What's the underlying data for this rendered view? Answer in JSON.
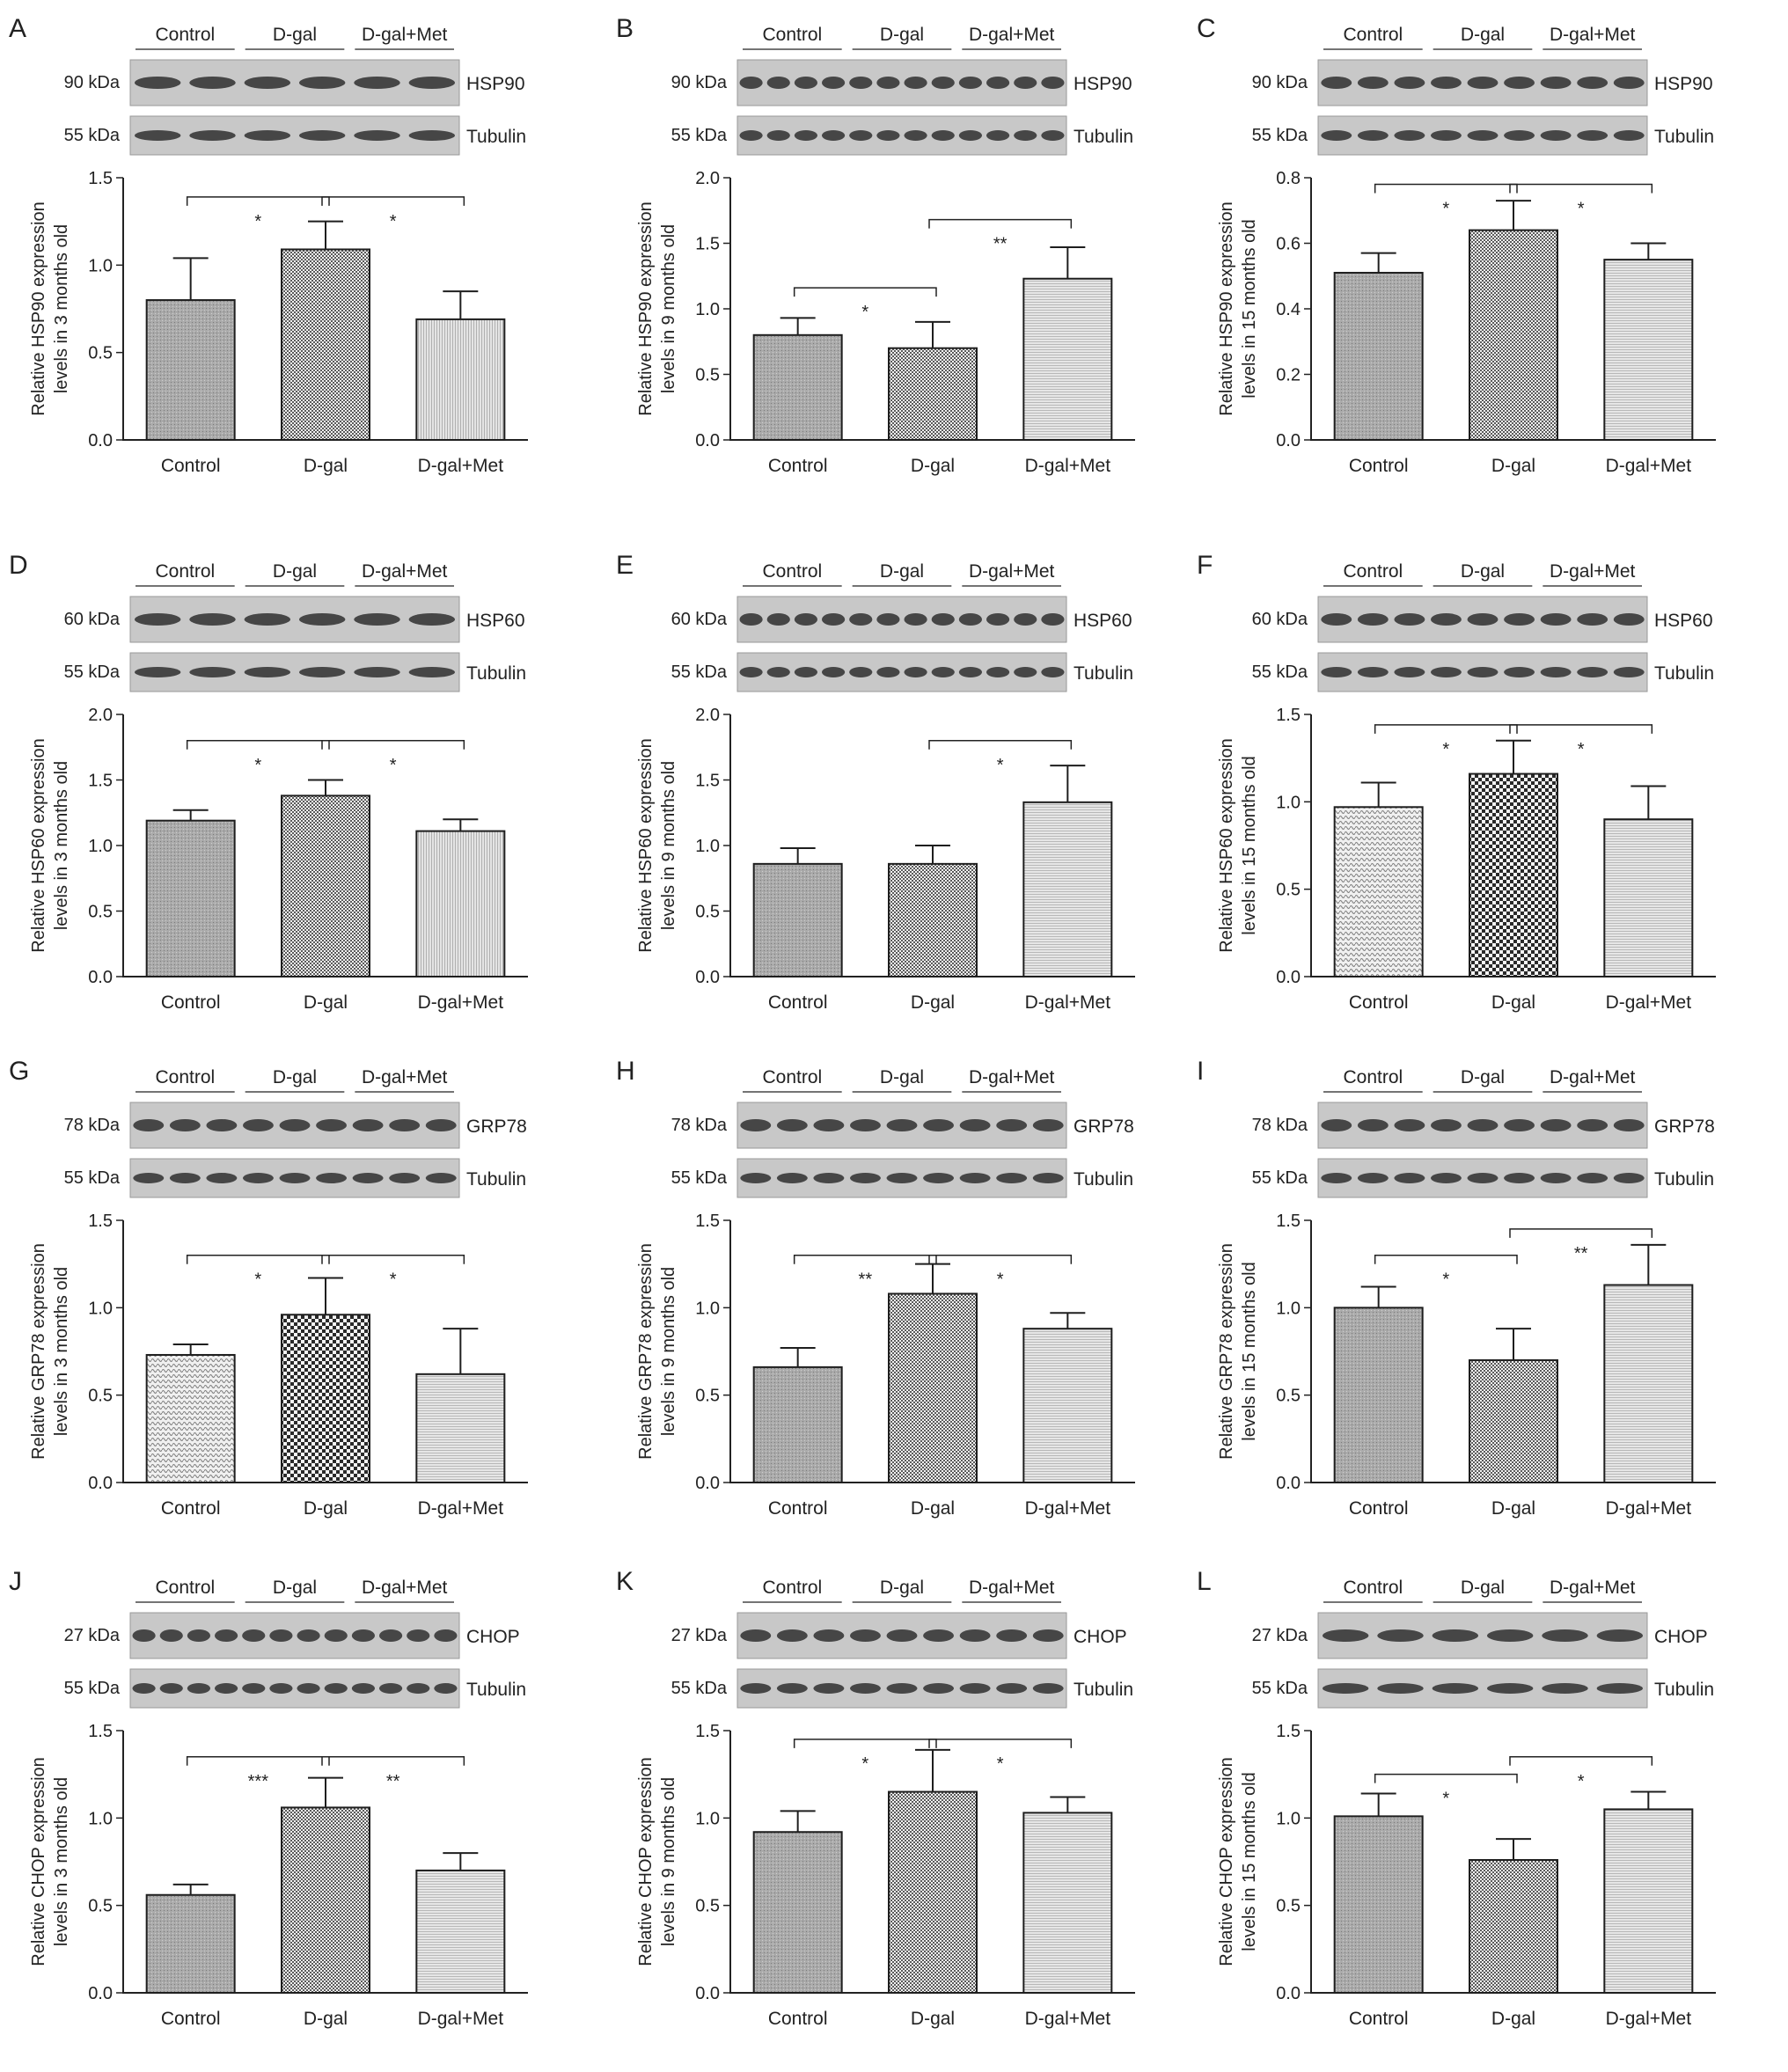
{
  "groups": [
    "Control",
    "D-gal",
    "D-gal+Met"
  ],
  "colors": {
    "axis": "#222222",
    "bar_fill": "#b4b4b4",
    "bar_stroke": "#1e1e1e",
    "blot_bg": "#c8c8c8",
    "band": "#2a2a2a"
  },
  "chart_data": [
    {
      "type": "bar",
      "panel": "A",
      "protein": "HSP90",
      "protein_kda": "90 kDa",
      "tubulin_label": "Tubulin",
      "tubulin_kda": "55 kDa",
      "ylabel": [
        "Relative HSP90 expression",
        "levels in 3 months old"
      ],
      "categories": [
        "Control",
        "D-gal",
        "D-gal+Met"
      ],
      "values": [
        0.8,
        1.09,
        0.69
      ],
      "errors": [
        0.24,
        0.16,
        0.16
      ],
      "ylim": [
        0,
        1.5
      ],
      "ticks": [
        "0.0",
        "0.5",
        "1.0",
        "1.5"
      ],
      "lanes": 6,
      "brackets": [
        {
          "from": 0,
          "to": 1,
          "label": "*",
          "level": 1.39
        },
        {
          "from": 1,
          "to": 2,
          "label": "*",
          "level": 1.39
        }
      ],
      "pattern": [
        "p-dots",
        "p-chk",
        "p-vline"
      ]
    },
    {
      "type": "bar",
      "panel": "B",
      "protein": "HSP90",
      "protein_kda": "90 kDa",
      "tubulin_label": "Tubulin",
      "tubulin_kda": "55 kDa",
      "ylabel": [
        "Relative HSP90 expression",
        "levels in 9 months old"
      ],
      "categories": [
        "Control",
        "D-gal",
        "D-gal+Met"
      ],
      "values": [
        0.8,
        0.7,
        1.23
      ],
      "errors": [
        0.13,
        0.2,
        0.24
      ],
      "ylim": [
        0,
        2.0
      ],
      "ticks": [
        "0.0",
        "0.5",
        "1.0",
        "1.5",
        "2.0"
      ],
      "lanes": 12,
      "brackets": [
        {
          "from": 0,
          "to": 1,
          "label": "*",
          "level": 1.16
        },
        {
          "from": 1,
          "to": 2,
          "label": "**",
          "level": 1.68
        }
      ],
      "pattern": [
        "p-dots",
        "p-chk",
        "p-hline"
      ]
    },
    {
      "type": "bar",
      "panel": "C",
      "protein": "HSP90",
      "protein_kda": "90 kDa",
      "tubulin_label": "Tubulin",
      "tubulin_kda": "55 kDa",
      "ylabel": [
        "Relative HSP90 expression",
        "levels in 15 months old"
      ],
      "categories": [
        "Control",
        "D-gal",
        "D-gal+Met"
      ],
      "values": [
        0.51,
        0.64,
        0.55
      ],
      "errors": [
        0.06,
        0.09,
        0.05
      ],
      "ylim": [
        0,
        0.8
      ],
      "ticks": [
        "0.0",
        "0.2",
        "0.4",
        "0.6",
        "0.8"
      ],
      "lanes": 9,
      "brackets": [
        {
          "from": 0,
          "to": 1,
          "label": "*",
          "level": 0.78
        },
        {
          "from": 1,
          "to": 2,
          "label": "*",
          "level": 0.78
        }
      ],
      "pattern": [
        "p-dots",
        "p-chk",
        "p-hline"
      ]
    },
    {
      "type": "bar",
      "panel": "D",
      "protein": "HSP60",
      "protein_kda": "60 kDa",
      "tubulin_label": "Tubulin",
      "tubulin_kda": "55 kDa",
      "ylabel": [
        "Relative HSP60 expression",
        "levels in 3 months old"
      ],
      "categories": [
        "Control",
        "D-gal",
        "D-gal+Met"
      ],
      "values": [
        1.19,
        1.38,
        1.11
      ],
      "errors": [
        0.08,
        0.12,
        0.09
      ],
      "ylim": [
        0,
        2.0
      ],
      "ticks": [
        "0.0",
        "0.5",
        "1.0",
        "1.5",
        "2.0"
      ],
      "lanes": 6,
      "brackets": [
        {
          "from": 0,
          "to": 1,
          "label": "*",
          "level": 1.8
        },
        {
          "from": 1,
          "to": 2,
          "label": "*",
          "level": 1.8
        }
      ],
      "pattern": [
        "p-dots",
        "p-chk",
        "p-vline"
      ]
    },
    {
      "type": "bar",
      "panel": "E",
      "protein": "HSP60",
      "protein_kda": "60 kDa",
      "tubulin_label": "Tubulin",
      "tubulin_kda": "55 kDa",
      "ylabel": [
        "Relative HSP60 expression",
        "levels in 9 months old"
      ],
      "categories": [
        "Control",
        "D-gal",
        "D-gal+Met"
      ],
      "values": [
        0.86,
        0.86,
        1.33
      ],
      "errors": [
        0.12,
        0.14,
        0.28
      ],
      "ylim": [
        0,
        2.0
      ],
      "ticks": [
        "0.0",
        "0.5",
        "1.0",
        "1.5",
        "2.0"
      ],
      "lanes": 12,
      "brackets": [
        {
          "from": 1,
          "to": 2,
          "label": "*",
          "level": 1.8
        }
      ],
      "pattern": [
        "p-dots",
        "p-chk",
        "p-hline"
      ]
    },
    {
      "type": "bar",
      "panel": "F",
      "protein": "HSP60",
      "protein_kda": "60 kDa",
      "tubulin_label": "Tubulin",
      "tubulin_kda": "55 kDa",
      "ylabel": [
        "Relative HSP60 expression",
        "levels in 15 months old"
      ],
      "categories": [
        "Control",
        "D-gal",
        "D-gal+Met"
      ],
      "values": [
        0.97,
        1.16,
        0.9
      ],
      "errors": [
        0.14,
        0.19,
        0.19
      ],
      "ylim": [
        0,
        1.5
      ],
      "ticks": [
        "0.0",
        "0.5",
        "1.0",
        "1.5"
      ],
      "lanes": 9,
      "brackets": [
        {
          "from": 0,
          "to": 1,
          "label": "*",
          "level": 1.44
        },
        {
          "from": 1,
          "to": 2,
          "label": "*",
          "level": 1.44
        }
      ],
      "pattern": [
        "p-wave",
        "p-big",
        "p-hline"
      ]
    },
    {
      "type": "bar",
      "panel": "G",
      "protein": "GRP78",
      "protein_kda": "78 kDa",
      "tubulin_label": "Tubulin",
      "tubulin_kda": "55 kDa",
      "ylabel": [
        "Relative GRP78 expression",
        "levels in 3 months old"
      ],
      "categories": [
        "Control",
        "D-gal",
        "D-gal+Met"
      ],
      "values": [
        0.73,
        0.96,
        0.62
      ],
      "errors": [
        0.06,
        0.21,
        0.26
      ],
      "ylim": [
        0,
        1.5
      ],
      "ticks": [
        "0.0",
        "0.5",
        "1.0",
        "1.5"
      ],
      "lanes": 9,
      "brackets": [
        {
          "from": 0,
          "to": 1,
          "label": "*",
          "level": 1.3
        },
        {
          "from": 1,
          "to": 2,
          "label": "*",
          "level": 1.3
        }
      ],
      "pattern": [
        "p-wave",
        "p-big",
        "p-hline"
      ]
    },
    {
      "type": "bar",
      "panel": "H",
      "protein": "GRP78",
      "protein_kda": "78 kDa",
      "tubulin_label": "Tubulin",
      "tubulin_kda": "55 kDa",
      "ylabel": [
        "Relative GRP78 expression",
        "levels in 9 months old"
      ],
      "categories": [
        "Control",
        "D-gal",
        "D-gal+Met"
      ],
      "values": [
        0.66,
        1.08,
        0.88
      ],
      "errors": [
        0.11,
        0.17,
        0.09
      ],
      "ylim": [
        0,
        1.5
      ],
      "ticks": [
        "0.0",
        "0.5",
        "1.0",
        "1.5"
      ],
      "lanes": 9,
      "brackets": [
        {
          "from": 0,
          "to": 1,
          "label": "**",
          "level": 1.3
        },
        {
          "from": 1,
          "to": 2,
          "label": "*",
          "level": 1.3
        }
      ],
      "pattern": [
        "p-dots",
        "p-chk",
        "p-hline"
      ]
    },
    {
      "type": "bar",
      "panel": "I",
      "protein": "GRP78",
      "protein_kda": "78 kDa",
      "tubulin_label": "Tubulin",
      "tubulin_kda": "55 kDa",
      "ylabel": [
        "Relative GRP78 expression",
        "levels in 15 months old"
      ],
      "categories": [
        "Control",
        "D-gal",
        "D-gal+Met"
      ],
      "values": [
        1.0,
        0.7,
        1.13
      ],
      "errors": [
        0.12,
        0.18,
        0.23
      ],
      "ylim": [
        0,
        1.5
      ],
      "ticks": [
        "0.0",
        "0.5",
        "1.0",
        "1.5"
      ],
      "lanes": 9,
      "brackets": [
        {
          "from": 0,
          "to": 1,
          "label": "*",
          "level": 1.3
        },
        {
          "from": 1,
          "to": 2,
          "label": "**",
          "level": 1.45
        }
      ],
      "pattern": [
        "p-dots",
        "p-chk",
        "p-hline"
      ]
    },
    {
      "type": "bar",
      "panel": "J",
      "protein": "CHOP",
      "protein_kda": "27 kDa",
      "tubulin_label": "Tubulin",
      "tubulin_kda": "55 kDa",
      "ylabel": [
        "Relative CHOP expression",
        "levels in 3 months old"
      ],
      "categories": [
        "Control",
        "D-gal",
        "D-gal+Met"
      ],
      "values": [
        0.56,
        1.06,
        0.7
      ],
      "errors": [
        0.06,
        0.17,
        0.1
      ],
      "ylim": [
        0,
        1.5
      ],
      "ticks": [
        "0.0",
        "0.5",
        "1.0",
        "1.5"
      ],
      "lanes": 12,
      "brackets": [
        {
          "from": 0,
          "to": 1,
          "label": "***",
          "level": 1.35
        },
        {
          "from": 1,
          "to": 2,
          "label": "**",
          "level": 1.35
        }
      ],
      "pattern": [
        "p-dots",
        "p-chk",
        "p-hline"
      ]
    },
    {
      "type": "bar",
      "panel": "K",
      "protein": "CHOP",
      "protein_kda": "27 kDa",
      "tubulin_label": "Tubulin",
      "tubulin_kda": "55 kDa",
      "ylabel": [
        "Relative CHOP expression",
        "levels in 9 months old"
      ],
      "categories": [
        "Control",
        "D-gal",
        "D-gal+Met"
      ],
      "values": [
        0.92,
        1.15,
        1.03
      ],
      "errors": [
        0.12,
        0.24,
        0.09
      ],
      "ylim": [
        0,
        1.5
      ],
      "ticks": [
        "0.0",
        "0.5",
        "1.0",
        "1.5"
      ],
      "lanes": 9,
      "brackets": [
        {
          "from": 0,
          "to": 1,
          "label": "*",
          "level": 1.45
        },
        {
          "from": 1,
          "to": 2,
          "label": "*",
          "level": 1.45
        }
      ],
      "pattern": [
        "p-dots",
        "p-chk",
        "p-hline"
      ]
    },
    {
      "type": "bar",
      "panel": "L",
      "protein": "CHOP",
      "protein_kda": "27 kDa",
      "tubulin_label": "Tubulin",
      "tubulin_kda": "55 kDa",
      "ylabel": [
        "Relative CHOP expression",
        "levels in 15 months old"
      ],
      "categories": [
        "Control",
        "D-gal",
        "D-gal+Met"
      ],
      "values": [
        1.01,
        0.76,
        1.05
      ],
      "errors": [
        0.13,
        0.12,
        0.1
      ],
      "ylim": [
        0,
        1.5
      ],
      "ticks": [
        "0.0",
        "0.5",
        "1.0",
        "1.5"
      ],
      "lanes": 6,
      "brackets": [
        {
          "from": 0,
          "to": 1,
          "label": "*",
          "level": 1.25
        },
        {
          "from": 1,
          "to": 2,
          "label": "*",
          "level": 1.35
        }
      ],
      "pattern": [
        "p-dots",
        "p-chk",
        "p-hline"
      ]
    }
  ]
}
